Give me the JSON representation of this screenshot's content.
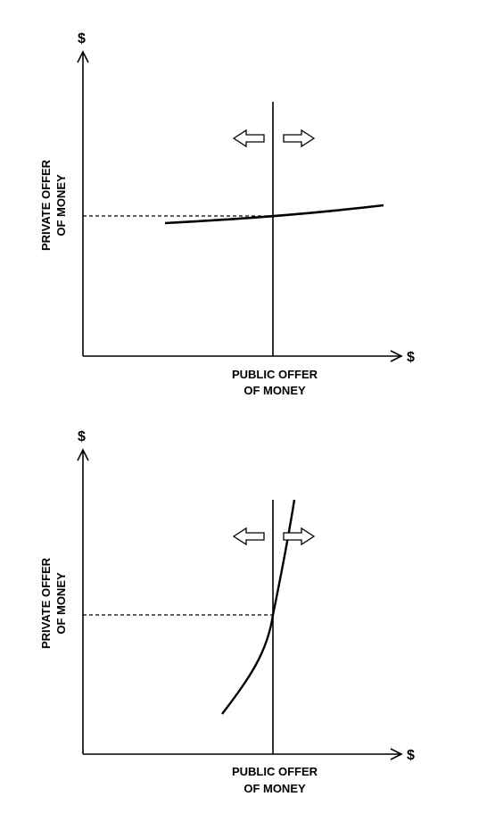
{
  "diagrams": [
    {
      "y_axis_symbol": "$",
      "x_axis_symbol": "$",
      "y_label_line1": "PRIVATE OFFER",
      "y_label_line2": "OF MONEY",
      "x_label_line1": "PUBLIC OFFER",
      "x_label_line2": "OF MONEY",
      "curve": "flat",
      "arrows": [
        "left",
        "right"
      ]
    },
    {
      "y_axis_symbol": "$",
      "x_axis_symbol": "$",
      "y_label_line1": "PRIVATE OFFER",
      "y_label_line2": "OF MONEY",
      "x_label_line1": "PUBLIC OFFER",
      "x_label_line2": "OF MONEY",
      "curve": "steep",
      "arrows": [
        "left",
        "right"
      ]
    }
  ],
  "colors": {
    "stroke": "#000000",
    "background": "#ffffff"
  }
}
